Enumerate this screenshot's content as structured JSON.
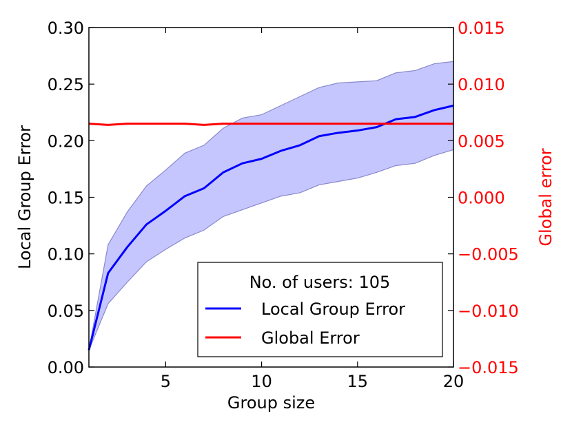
{
  "chart_data": {
    "type": "line",
    "title": "",
    "xlabel": "Group size",
    "ylabel_left": "Local Group Error",
    "ylabel_right": "Global error",
    "xlim": [
      1,
      20
    ],
    "ylim_left": [
      0.0,
      0.3
    ],
    "ylim_right": [
      -0.015,
      0.015
    ],
    "grid": false,
    "legend_placement": "lower-right",
    "legend_title": "No. of users: 105",
    "x_ticks": [
      5,
      10,
      15,
      20
    ],
    "x_tick_labels": [
      "5",
      "10",
      "15",
      "20"
    ],
    "y_left_ticks": [
      0.0,
      0.05,
      0.1,
      0.15,
      0.2,
      0.25,
      0.3
    ],
    "y_left_tick_labels": [
      "0.00",
      "0.05",
      "0.10",
      "0.15",
      "0.20",
      "0.25",
      "0.30"
    ],
    "y_right_ticks": [
      -0.015,
      -0.01,
      -0.005,
      0.0,
      0.005,
      0.01,
      0.015
    ],
    "y_right_tick_labels": [
      "−0.015",
      "−0.010",
      "−0.005",
      "0.000",
      "0.005",
      "0.010",
      "0.015"
    ],
    "x": [
      1,
      2,
      3,
      4,
      5,
      6,
      7,
      8,
      9,
      10,
      11,
      12,
      13,
      14,
      15,
      16,
      17,
      18,
      19,
      20
    ],
    "series": [
      {
        "name": "Local Group Error",
        "axis": "left",
        "color": "#0000ff",
        "values": [
          0.015,
          0.083,
          0.106,
          0.126,
          0.138,
          0.151,
          0.158,
          0.172,
          0.18,
          0.184,
          0.191,
          0.196,
          0.204,
          0.207,
          0.209,
          0.212,
          0.219,
          0.221,
          0.227,
          0.231
        ],
        "band_lower": [
          0.015,
          0.056,
          0.075,
          0.093,
          0.104,
          0.114,
          0.121,
          0.133,
          0.139,
          0.145,
          0.151,
          0.154,
          0.161,
          0.164,
          0.167,
          0.172,
          0.178,
          0.18,
          0.187,
          0.192
        ],
        "band_upper": [
          0.015,
          0.108,
          0.137,
          0.16,
          0.174,
          0.189,
          0.196,
          0.211,
          0.22,
          0.223,
          0.231,
          0.239,
          0.247,
          0.251,
          0.252,
          0.253,
          0.26,
          0.262,
          0.268,
          0.27
        ],
        "band_color": "#b3b3ff"
      },
      {
        "name": "Global Error",
        "axis": "right",
        "color": "#ff0000",
        "values": [
          0.0065,
          0.0064,
          0.0065,
          0.0065,
          0.0065,
          0.0065,
          0.0064,
          0.0065,
          0.0065,
          0.0065,
          0.0065,
          0.0065,
          0.0065,
          0.0065,
          0.0065,
          0.0065,
          0.0065,
          0.0065,
          0.0065,
          0.0065
        ]
      }
    ],
    "colors": {
      "axis": "#000000",
      "right_axis_text": "#ff0000"
    }
  }
}
